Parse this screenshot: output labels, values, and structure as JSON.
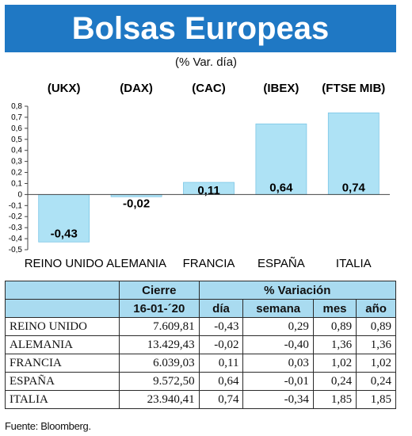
{
  "header": {
    "title": "Bolsas Europeas",
    "subtitle": "(% Var. día)"
  },
  "chart_data": {
    "type": "bar",
    "indices": [
      "(UKX)",
      "(DAX)",
      "(CAC)",
      "(IBEX)",
      "(FTSE MIB)"
    ],
    "categories": [
      "REINO UNIDO",
      "ALEMANIA",
      "FRANCIA",
      "ESPAÑA",
      "ITALIA"
    ],
    "values": [
      -0.43,
      -0.02,
      0.11,
      0.64,
      0.74
    ],
    "value_labels": [
      "-0,43",
      "-0,02",
      "0,11",
      "0,64",
      "0,74"
    ],
    "ylim": [
      -0.5,
      0.8
    ],
    "yticks": [
      "0,8",
      "0,7",
      "0,6",
      "0,5",
      "0,4",
      "0,3",
      "0,2",
      "0,1",
      "0",
      "-0,1",
      "-0,2",
      "-0,3",
      "-0,4",
      "-0,5"
    ],
    "ytick_values": [
      0.8,
      0.7,
      0.6,
      0.5,
      0.4,
      0.3,
      0.2,
      0.1,
      0,
      -0.1,
      -0.2,
      -0.3,
      -0.4,
      -0.5
    ],
    "bar_color": "#aee2f5",
    "grid": false
  },
  "table": {
    "header_cierre": "Cierre",
    "header_variacion": "% Variación",
    "date": "16-01-´20",
    "columns": [
      "día",
      "semana",
      "mes",
      "año"
    ],
    "rows": [
      {
        "name": "REINO UNIDO",
        "cierre": "7.609,81",
        "dia": "-0,43",
        "semana": "0,29",
        "mes": "0,89",
        "anio": "0,89"
      },
      {
        "name": "ALEMANIA",
        "cierre": "13.429,43",
        "dia": "-0,02",
        "semana": "-0,40",
        "mes": "1,36",
        "anio": "1,36"
      },
      {
        "name": "FRANCIA",
        "cierre": "6.039,03",
        "dia": "0,11",
        "semana": "0,03",
        "mes": "1,02",
        "anio": "1,02"
      },
      {
        "name": "ESPAÑA",
        "cierre": "9.572,50",
        "dia": "0,64",
        "semana": "-0,01",
        "mes": "0,24",
        "anio": "0,24"
      },
      {
        "name": "ITALIA",
        "cierre": "23.940,41",
        "dia": "0,74",
        "semana": "-0,34",
        "mes": "1,85",
        "anio": "1,85"
      }
    ]
  },
  "footer": {
    "source": "Fuente: Bloomberg."
  },
  "colors": {
    "title_bg": "#1f78c4",
    "table_header_bg": "#a9dbf0"
  }
}
